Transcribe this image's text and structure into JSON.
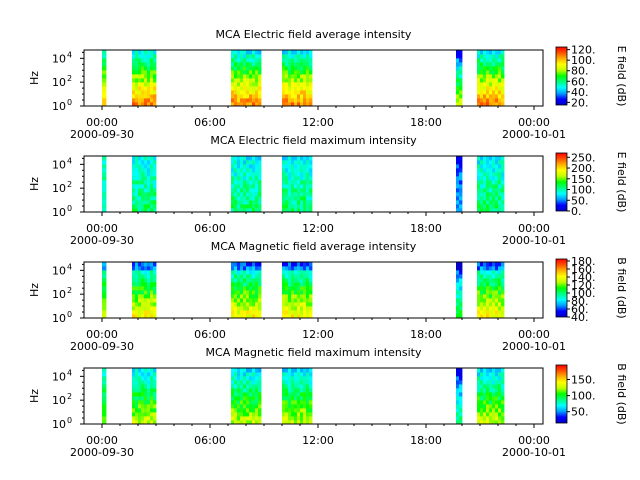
{
  "chart_data": [
    {
      "type": "heatmap",
      "title": "MCA  Electric field average intensity",
      "ylabel": "Hz",
      "y_scale": "log",
      "y_ticks": [
        {
          "label": "10",
          "exp": "0"
        },
        {
          "label": "10",
          "exp": "2"
        },
        {
          "label": "10",
          "exp": "4"
        }
      ],
      "x_ticks": [
        {
          "time": "00:00",
          "date": "2000-09-30"
        },
        {
          "time": "06:00",
          "date": ""
        },
        {
          "time": "12:00",
          "date": ""
        },
        {
          "time": "18:00",
          "date": ""
        },
        {
          "time": "00:00",
          "date": "2000-10-01"
        }
      ],
      "xlim_hours": [
        -1,
        24.5
      ],
      "colorbar": {
        "label": "E field (dB)",
        "range": [
          15,
          125
        ],
        "ticks": [
          "20.",
          "40.",
          "60.",
          "80.",
          "100.",
          "120."
        ]
      },
      "data_intervals_utc": [
        [
          "00:00",
          "00:10"
        ],
        [
          "01:40",
          "03:00"
        ],
        [
          "07:10",
          "08:50"
        ],
        [
          "10:00",
          "11:40"
        ],
        [
          "19:40",
          "20:00"
        ],
        [
          "20:50",
          "22:20"
        ]
      ],
      "grid": false
    },
    {
      "type": "heatmap",
      "title": "MCA  Electric field maximum intensity",
      "ylabel": "Hz",
      "y_scale": "log",
      "y_ticks": [
        {
          "label": "10",
          "exp": "0"
        },
        {
          "label": "10",
          "exp": "2"
        },
        {
          "label": "10",
          "exp": "4"
        }
      ],
      "x_ticks": [
        {
          "time": "00:00",
          "date": "2000-09-30"
        },
        {
          "time": "06:00",
          "date": ""
        },
        {
          "time": "12:00",
          "date": ""
        },
        {
          "time": "18:00",
          "date": ""
        },
        {
          "time": "00:00",
          "date": "2000-10-01"
        }
      ],
      "xlim_hours": [
        -1,
        24.5
      ],
      "colorbar": {
        "label": "E field (dB)",
        "range": [
          0,
          270
        ],
        "ticks": [
          "0.",
          "50.",
          "100.",
          "150.",
          "200.",
          "250."
        ]
      },
      "data_intervals_utc": [
        [
          "00:00",
          "00:10"
        ],
        [
          "01:40",
          "03:00"
        ],
        [
          "07:10",
          "08:50"
        ],
        [
          "10:00",
          "11:40"
        ],
        [
          "19:40",
          "20:00"
        ],
        [
          "20:50",
          "22:20"
        ]
      ],
      "grid": false
    },
    {
      "type": "heatmap",
      "title": "MCA  Magnetic field average intensity",
      "ylabel": "Hz",
      "y_scale": "log",
      "y_ticks": [
        {
          "label": "10",
          "exp": "0"
        },
        {
          "label": "10",
          "exp": "2"
        },
        {
          "label": "10",
          "exp": "4"
        }
      ],
      "x_ticks": [
        {
          "time": "00:00",
          "date": "2000-09-30"
        },
        {
          "time": "06:00",
          "date": ""
        },
        {
          "time": "12:00",
          "date": ""
        },
        {
          "time": "18:00",
          "date": ""
        },
        {
          "time": "00:00",
          "date": "2000-10-01"
        }
      ],
      "xlim_hours": [
        -1,
        24.5
      ],
      "colorbar": {
        "label": "B field (dB)",
        "range": [
          40,
          185
        ],
        "ticks": [
          "40.",
          "60.",
          "80.",
          "100.",
          "120.",
          "140.",
          "160.",
          "180."
        ]
      },
      "data_intervals_utc": [
        [
          "00:00",
          "00:10"
        ],
        [
          "01:40",
          "03:00"
        ],
        [
          "07:10",
          "08:50"
        ],
        [
          "10:00",
          "11:40"
        ],
        [
          "19:40",
          "20:00"
        ],
        [
          "20:50",
          "22:20"
        ]
      ],
      "grid": false
    },
    {
      "type": "heatmap",
      "title": "MCA  Magnetic field maximum intensity",
      "ylabel": "Hz",
      "y_scale": "log",
      "y_ticks": [
        {
          "label": "10",
          "exp": "0"
        },
        {
          "label": "10",
          "exp": "2"
        },
        {
          "label": "10",
          "exp": "4"
        }
      ],
      "x_ticks": [
        {
          "time": "00:00",
          "date": "2000-09-30"
        },
        {
          "time": "06:00",
          "date": ""
        },
        {
          "time": "12:00",
          "date": ""
        },
        {
          "time": "18:00",
          "date": ""
        },
        {
          "time": "00:00",
          "date": "2000-10-01"
        }
      ],
      "xlim_hours": [
        -1,
        24.5
      ],
      "colorbar": {
        "label": "B field (dB)",
        "range": [
          15,
          195
        ],
        "ticks": [
          "50.",
          "100.",
          "150."
        ]
      },
      "data_intervals_utc": [
        [
          "00:00",
          "00:10"
        ],
        [
          "01:40",
          "03:00"
        ],
        [
          "07:10",
          "08:50"
        ],
        [
          "10:00",
          "11:40"
        ],
        [
          "19:40",
          "20:00"
        ],
        [
          "20:50",
          "22:20"
        ]
      ],
      "grid": false
    }
  ],
  "colormap_stops": [
    "#0000c8",
    "#0000ff",
    "#00a0ff",
    "#00ffff",
    "#00ff80",
    "#00ff00",
    "#c0ff00",
    "#ffff00",
    "#ffb000",
    "#ff5000",
    "#ff0000"
  ]
}
